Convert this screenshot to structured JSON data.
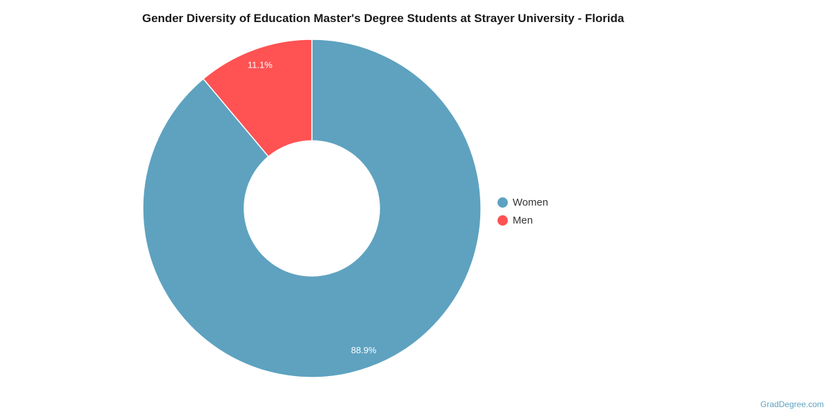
{
  "chart_data": {
    "type": "pie",
    "title": "Gender Diversity of Education Master's Degree Students at Strayer University - Florida",
    "categories": [
      "Women",
      "Men"
    ],
    "values": [
      88.9,
      11.1
    ],
    "data_labels": [
      "88.9%",
      "11.1%"
    ],
    "colors": [
      "#5ea2c0",
      "#ff5253"
    ],
    "donut": true,
    "legend_position": "right"
  },
  "watermark": "GradDegree.com"
}
